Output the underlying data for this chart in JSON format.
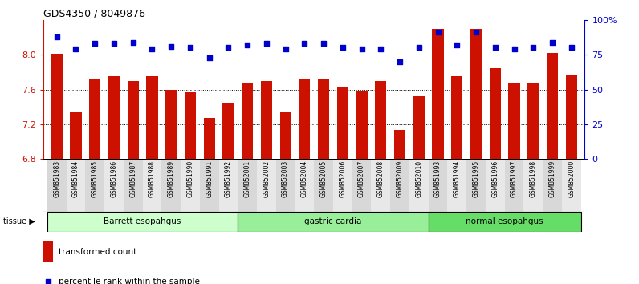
{
  "title": "GDS4350 / 8049876",
  "samples": [
    "GSM851983",
    "GSM851984",
    "GSM851985",
    "GSM851986",
    "GSM851987",
    "GSM851988",
    "GSM851989",
    "GSM851990",
    "GSM851991",
    "GSM851992",
    "GSM852001",
    "GSM852002",
    "GSM852003",
    "GSM852004",
    "GSM852005",
    "GSM852006",
    "GSM852007",
    "GSM852008",
    "GSM852009",
    "GSM852010",
    "GSM851993",
    "GSM851994",
    "GSM851995",
    "GSM851996",
    "GSM851997",
    "GSM851998",
    "GSM851999",
    "GSM852000"
  ],
  "bar_values": [
    8.01,
    7.35,
    7.72,
    7.75,
    7.7,
    7.75,
    7.6,
    7.57,
    7.27,
    7.45,
    7.67,
    7.7,
    7.35,
    7.72,
    7.72,
    7.63,
    7.58,
    7.7,
    7.13,
    7.52,
    8.3,
    7.75,
    8.3,
    7.84,
    7.67,
    7.67,
    8.02,
    7.77
  ],
  "percentile_values": [
    88,
    79,
    83,
    83,
    84,
    79,
    81,
    80,
    73,
    80,
    82,
    83,
    79,
    83,
    83,
    80,
    79,
    79,
    70,
    80,
    91,
    82,
    91,
    80,
    79,
    80,
    84,
    80
  ],
  "groups": [
    {
      "label": "Barrett esopahgus",
      "start": 0,
      "end": 10,
      "color": "#ccffcc"
    },
    {
      "label": "gastric cardia",
      "start": 10,
      "end": 20,
      "color": "#99ee99"
    },
    {
      "label": "normal esopahgus",
      "start": 20,
      "end": 28,
      "color": "#66dd66"
    }
  ],
  "ylim_left": [
    6.8,
    8.4
  ],
  "ylim_right": [
    0,
    100
  ],
  "yticks_left": [
    6.8,
    7.2,
    7.6,
    8.0
  ],
  "yticks_right": [
    0,
    25,
    50,
    75,
    100
  ],
  "bar_color": "#cc1100",
  "dot_color": "#0000cc",
  "background_color": "#ffffff",
  "legend_bar_label": "transformed count",
  "legend_dot_label": "percentile rank within the sample",
  "tissue_label": "tissue"
}
